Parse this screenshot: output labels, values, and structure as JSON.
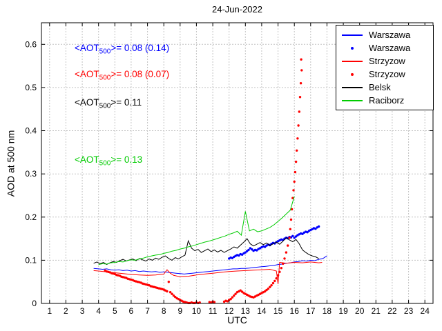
{
  "chart_data": {
    "type": "line",
    "title": "24-Jun-2022",
    "xlabel": "UTC",
    "ylabel": "AOD at 500 nm",
    "xlim": [
      0.5,
      24.5
    ],
    "ylim": [
      0,
      0.65
    ],
    "xticks": [
      1,
      2,
      3,
      4,
      5,
      6,
      7,
      8,
      9,
      10,
      11,
      12,
      13,
      14,
      15,
      16,
      17,
      18,
      19,
      20,
      21,
      22,
      23,
      24
    ],
    "yticks": [
      0,
      0.1,
      0.2,
      0.3,
      0.4,
      0.5,
      0.6
    ],
    "yticklabels": [
      "0",
      "0.1",
      "0.2",
      "0.3",
      "0.4",
      "0.5",
      "0.6"
    ],
    "grid": true,
    "legend_position": "top-right",
    "annotations": [
      {
        "color": "#0000ff",
        "pre": "<AOT",
        "sub": "500",
        "post": ">= 0.08 (0.14)"
      },
      {
        "color": "#ff0000",
        "pre": "<AOT",
        "sub": "500",
        "post": ">= 0.08 (0.07)"
      },
      {
        "color": "#000000",
        "pre": "<AOT",
        "sub": "500",
        "post": ">= 0.11"
      },
      {
        "color": "#00cc00",
        "pre": "<AOT",
        "sub": "500",
        "post": ">= 0.13"
      }
    ],
    "series": [
      {
        "name": "Warszawa",
        "color": "#0000ff",
        "style": "line",
        "x": [
          3.7,
          4.0,
          4.25,
          4.5,
          4.75,
          5.0,
          5.25,
          5.5,
          5.75,
          6.0,
          6.25,
          6.5,
          6.75,
          7.0,
          7.25,
          7.5,
          7.75,
          8.0,
          8.25,
          8.5,
          8.75,
          9.0,
          9.25,
          9.5,
          9.75,
          10.0,
          10.25,
          10.5,
          10.75,
          11.0,
          11.25,
          11.5,
          11.75,
          12.0,
          12.25,
          12.5,
          12.75,
          13.0,
          13.25,
          13.5,
          13.75,
          14.0,
          14.25,
          14.5,
          14.75,
          15.0,
          15.25,
          15.5,
          15.75,
          16.0,
          16.25,
          16.5,
          16.75,
          17.0,
          17.25,
          17.5,
          17.75,
          18.0
        ],
        "y": [
          0.081,
          0.08,
          0.079,
          0.08,
          0.078,
          0.077,
          0.078,
          0.076,
          0.077,
          0.075,
          0.076,
          0.074,
          0.075,
          0.074,
          0.073,
          0.074,
          0.072,
          0.073,
          0.072,
          0.071,
          0.07,
          0.069,
          0.068,
          0.069,
          0.07,
          0.071,
          0.072,
          0.073,
          0.074,
          0.075,
          0.076,
          0.077,
          0.078,
          0.079,
          0.08,
          0.08,
          0.081,
          0.081,
          0.082,
          0.083,
          0.084,
          0.085,
          0.086,
          0.087,
          0.088,
          0.09,
          0.091,
          0.093,
          0.094,
          0.096,
          0.097,
          0.099,
          0.098,
          0.1,
          0.099,
          0.102,
          0.104,
          0.11
        ]
      },
      {
        "name": "Warszawa",
        "color": "#0000ff",
        "style": "scatter",
        "x": [
          12.0,
          12.1,
          12.2,
          12.3,
          12.4,
          12.5,
          12.6,
          12.7,
          12.8,
          12.9,
          13.0,
          13.1,
          13.2,
          13.3,
          13.4,
          13.5,
          13.6,
          13.7,
          13.8,
          13.9,
          14.0,
          14.1,
          14.2,
          14.3,
          14.4,
          14.5,
          14.6,
          14.7,
          14.8,
          14.9,
          15.0,
          15.1,
          15.2,
          15.3,
          15.4,
          15.5,
          15.6,
          15.7,
          15.8,
          15.9,
          16.0,
          16.1,
          16.2,
          16.3,
          16.4,
          16.5,
          16.6,
          16.7,
          16.8,
          16.9,
          17.0,
          17.1,
          17.2,
          17.3,
          17.4,
          17.5
        ],
        "y": [
          0.104,
          0.106,
          0.105,
          0.108,
          0.11,
          0.112,
          0.111,
          0.114,
          0.113,
          0.116,
          0.118,
          0.121,
          0.124,
          0.128,
          0.125,
          0.122,
          0.124,
          0.123,
          0.126,
          0.128,
          0.13,
          0.132,
          0.131,
          0.134,
          0.136,
          0.135,
          0.138,
          0.14,
          0.139,
          0.142,
          0.144,
          0.146,
          0.148,
          0.147,
          0.15,
          0.152,
          0.151,
          0.154,
          0.153,
          0.156,
          0.152,
          0.155,
          0.158,
          0.16,
          0.162,
          0.161,
          0.164,
          0.166,
          0.165,
          0.168,
          0.17,
          0.172,
          0.174,
          0.173,
          0.176,
          0.178
        ]
      },
      {
        "name": "Strzyzow",
        "color": "#ff0000",
        "style": "line",
        "x": [
          3.7,
          4.0,
          4.5,
          5.0,
          5.5,
          6.0,
          6.5,
          7.0,
          7.5,
          8.0,
          8.2,
          8.4,
          8.6,
          9.0,
          9.5,
          10.0,
          10.5,
          11.0,
          11.5,
          12.0,
          12.5,
          13.0,
          13.5,
          14.0,
          14.5,
          14.9,
          15.0,
          15.1,
          15.5,
          16.0,
          16.5,
          17.0,
          17.5,
          17.7
        ],
        "y": [
          0.076,
          0.075,
          0.073,
          0.071,
          0.069,
          0.067,
          0.066,
          0.065,
          0.066,
          0.068,
          0.078,
          0.07,
          0.065,
          0.062,
          0.063,
          0.066,
          0.068,
          0.07,
          0.072,
          0.074,
          0.075,
          0.076,
          0.077,
          0.078,
          0.079,
          0.075,
          0.045,
          0.095,
          0.093,
          0.095,
          0.094,
          0.096,
          0.094,
          0.095
        ]
      },
      {
        "name": "Strzyzow",
        "color": "#ff0000",
        "style": "scatter",
        "x": [
          4.4,
          4.5,
          4.6,
          4.7,
          4.8,
          4.9,
          5.0,
          5.1,
          5.2,
          5.3,
          5.4,
          5.5,
          5.6,
          5.7,
          5.8,
          5.9,
          6.0,
          6.1,
          6.2,
          6.3,
          6.4,
          6.5,
          6.6,
          6.7,
          6.8,
          6.9,
          7.0,
          7.1,
          7.2,
          7.3,
          7.4,
          7.5,
          7.6,
          7.7,
          7.8,
          7.9,
          8.0,
          8.1,
          8.2,
          8.3,
          8.4,
          8.5,
          8.6,
          8.7,
          8.8,
          8.9,
          9.0,
          9.1,
          9.2,
          9.3,
          9.4,
          9.5,
          9.6,
          9.7,
          9.8,
          9.9,
          10.0,
          10.1,
          10.2,
          10.8,
          10.9,
          11.0,
          11.1,
          11.7,
          11.8,
          11.9,
          12.0,
          12.1,
          12.2,
          12.3,
          12.4,
          12.5,
          12.6,
          12.7,
          12.8,
          12.9,
          13.0,
          13.1,
          13.2,
          13.3,
          13.4,
          13.5,
          13.6,
          13.7,
          13.8,
          13.9,
          14.0,
          14.1,
          14.2,
          14.3,
          14.4,
          14.5,
          14.6,
          14.7,
          14.8,
          14.9,
          15.0,
          15.1,
          15.2,
          15.3,
          15.4,
          15.5,
          15.6,
          15.7,
          15.75,
          15.8,
          15.85,
          15.9,
          15.95,
          16.0,
          16.05,
          16.1,
          16.15,
          16.2,
          16.25,
          16.3,
          16.35,
          16.4,
          16.42,
          16.45
        ],
        "y": [
          0.076,
          0.074,
          0.073,
          0.072,
          0.07,
          0.069,
          0.068,
          0.066,
          0.065,
          0.064,
          0.062,
          0.061,
          0.06,
          0.059,
          0.057,
          0.056,
          0.055,
          0.054,
          0.052,
          0.051,
          0.05,
          0.049,
          0.048,
          0.046,
          0.045,
          0.044,
          0.043,
          0.042,
          0.04,
          0.039,
          0.038,
          0.037,
          0.036,
          0.035,
          0.034,
          0.033,
          0.032,
          0.03,
          0.028,
          0.05,
          0.026,
          0.022,
          0.018,
          0.015,
          0.012,
          0.01,
          0.008,
          0.006,
          0.004,
          0.003,
          0.002,
          0.001,
          0.001,
          0.002,
          0.001,
          0.001,
          0.002,
          0.001,
          0.002,
          0.003,
          0.002,
          0.004,
          0.003,
          0.004,
          0.006,
          0.005,
          0.008,
          0.01,
          0.014,
          0.018,
          0.022,
          0.026,
          0.028,
          0.03,
          0.027,
          0.024,
          0.022,
          0.02,
          0.018,
          0.016,
          0.015,
          0.014,
          0.016,
          0.018,
          0.02,
          0.022,
          0.024,
          0.026,
          0.028,
          0.031,
          0.034,
          0.038,
          0.042,
          0.047,
          0.052,
          0.058,
          0.065,
          0.073,
          0.082,
          0.092,
          0.104,
          0.118,
          0.134,
          0.152,
          0.172,
          0.194,
          0.218,
          0.244,
          0.262,
          0.282,
          0.304,
          0.328,
          0.354,
          0.382,
          0.412,
          0.444,
          0.478,
          0.51,
          0.565,
          0.54
        ]
      },
      {
        "name": "Belsk",
        "color": "#000000",
        "style": "line",
        "x": [
          3.7,
          3.9,
          4.1,
          4.3,
          4.5,
          4.7,
          4.9,
          5.1,
          5.3,
          5.5,
          5.7,
          5.9,
          6.1,
          6.3,
          6.5,
          6.7,
          6.9,
          7.1,
          7.3,
          7.5,
          7.7,
          7.9,
          8.1,
          8.3,
          8.5,
          8.7,
          8.9,
          9.1,
          9.3,
          9.5,
          9.7,
          9.9,
          10.1,
          10.3,
          10.5,
          10.7,
          10.9,
          11.1,
          11.3,
          11.5,
          11.7,
          11.9,
          12.1,
          12.3,
          12.5,
          12.7,
          12.9,
          13.1,
          13.3,
          13.5,
          13.7,
          13.9,
          14.1,
          14.3,
          14.5,
          14.7,
          14.9,
          15.1,
          15.3,
          15.5,
          15.7,
          15.9,
          16.1,
          16.3,
          16.5,
          16.7,
          16.9,
          17.1,
          17.3,
          17.5
        ],
        "y": [
          0.093,
          0.096,
          0.092,
          0.095,
          0.09,
          0.094,
          0.097,
          0.095,
          0.099,
          0.102,
          0.098,
          0.101,
          0.103,
          0.099,
          0.104,
          0.101,
          0.098,
          0.103,
          0.1,
          0.105,
          0.102,
          0.107,
          0.11,
          0.104,
          0.1,
          0.106,
          0.103,
          0.108,
          0.112,
          0.145,
          0.128,
          0.122,
          0.125,
          0.118,
          0.122,
          0.126,
          0.12,
          0.124,
          0.119,
          0.123,
          0.118,
          0.122,
          0.126,
          0.131,
          0.128,
          0.135,
          0.142,
          0.15,
          0.138,
          0.133,
          0.137,
          0.141,
          0.136,
          0.14,
          0.134,
          0.138,
          0.142,
          0.137,
          0.144,
          0.152,
          0.147,
          0.143,
          0.148,
          0.138,
          0.124,
          0.118,
          0.113,
          0.11,
          0.108,
          0.104
        ]
      },
      {
        "name": "Raciborz",
        "color": "#00cc00",
        "style": "line",
        "x": [
          4.0,
          4.25,
          4.5,
          4.75,
          5.0,
          5.25,
          5.5,
          5.75,
          6.0,
          6.25,
          6.5,
          6.75,
          7.0,
          7.25,
          7.5,
          7.75,
          8.0,
          8.25,
          8.5,
          8.75,
          9.0,
          9.25,
          9.5,
          9.75,
          10.0,
          10.25,
          10.5,
          10.75,
          11.0,
          11.25,
          11.5,
          11.75,
          12.0,
          12.25,
          12.5,
          12.75,
          13.0,
          13.25,
          13.5,
          13.75,
          14.0,
          14.25,
          14.5,
          14.75,
          15.0,
          15.25,
          15.5,
          15.75,
          16.0
        ],
        "y": [
          0.09,
          0.092,
          0.091,
          0.094,
          0.095,
          0.097,
          0.096,
          0.099,
          0.101,
          0.1,
          0.103,
          0.105,
          0.108,
          0.11,
          0.112,
          0.113,
          0.116,
          0.118,
          0.121,
          0.123,
          0.126,
          0.128,
          0.131,
          0.133,
          0.136,
          0.139,
          0.142,
          0.144,
          0.147,
          0.15,
          0.153,
          0.156,
          0.16,
          0.163,
          0.167,
          0.158,
          0.213,
          0.168,
          0.172,
          0.166,
          0.168,
          0.172,
          0.176,
          0.182,
          0.19,
          0.198,
          0.207,
          0.216,
          0.248
        ]
      }
    ]
  }
}
